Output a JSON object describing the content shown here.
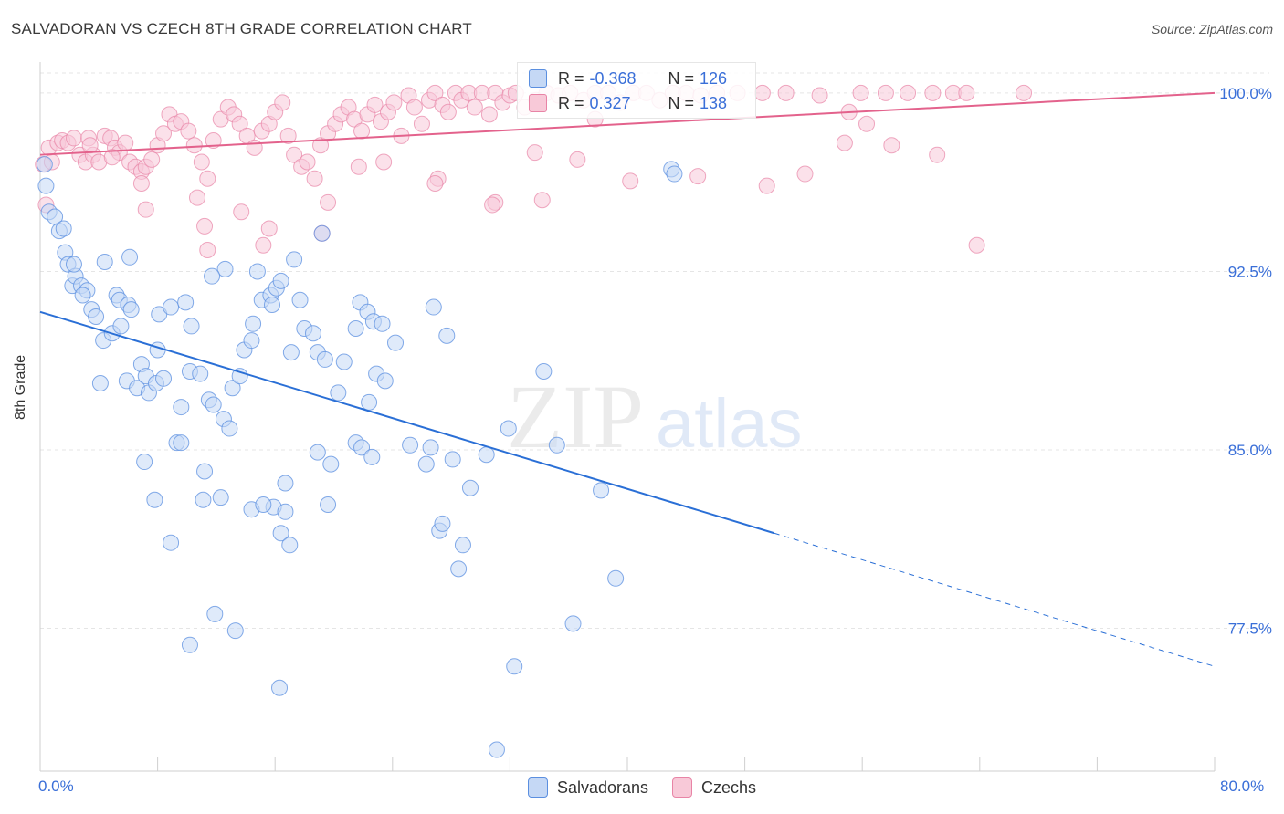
{
  "header": {
    "title": "SALVADORAN VS CZECH 8TH GRADE CORRELATION CHART",
    "source": "Source: ZipAtlas.com"
  },
  "watermark": {
    "part1": "ZIP",
    "part2": "atlas"
  },
  "legend": {
    "row1": {
      "r_label": "R =",
      "r_value": "-0.368",
      "n_label": "N =",
      "n_value": "126"
    },
    "row2": {
      "r_label": "R =",
      "r_value": "0.327",
      "n_label": "N =",
      "n_value": "138"
    }
  },
  "bottom_legend": {
    "series1": "Salvadorans",
    "series2": "Czechs"
  },
  "colors": {
    "blue_fill": "#c5d8f5",
    "blue_stroke": "#5b8fe0",
    "blue_line": "#2a6fd6",
    "pink_fill": "#f8c9d8",
    "pink_stroke": "#e884a6",
    "pink_line": "#e3628c",
    "grid": "#e5e5e5",
    "tick_text": "#3a6fd8"
  },
  "chart_data": {
    "type": "scatter",
    "title": "SALVADORAN VS CZECH 8TH GRADE CORRELATION CHART",
    "xlabel": "",
    "ylabel": "8th Grade",
    "xlim": [
      0,
      80
    ],
    "ylim": [
      71.5,
      101.3
    ],
    "x_tick_labels": [
      "0.0%",
      "80.0%"
    ],
    "y_ticks": [
      77.5,
      85.0,
      92.5,
      100.0
    ],
    "y_tick_labels": [
      "77.5%",
      "85.0%",
      "92.5%",
      "100.0%"
    ],
    "grid": true,
    "legend_position": "top-center",
    "series": [
      {
        "name": "Salvadorans",
        "r": -0.368,
        "n": 126,
        "trend": {
          "x0": 0,
          "y0": 90.8,
          "x1": 50,
          "y1": 81.5,
          "dash_to_x": 80,
          "dash_to_y": 75.9
        },
        "points": [
          [
            0.3,
            97.0
          ],
          [
            0.4,
            96.1
          ],
          [
            0.6,
            95.0
          ],
          [
            1.0,
            94.8
          ],
          [
            1.3,
            94.2
          ],
          [
            1.6,
            94.3
          ],
          [
            1.7,
            93.3
          ],
          [
            1.9,
            92.8
          ],
          [
            2.2,
            91.9
          ],
          [
            2.4,
            92.3
          ],
          [
            2.8,
            91.9
          ],
          [
            2.3,
            92.8
          ],
          [
            3.2,
            91.7
          ],
          [
            2.9,
            91.5
          ],
          [
            3.5,
            90.9
          ],
          [
            3.8,
            90.6
          ],
          [
            4.3,
            89.6
          ],
          [
            4.9,
            89.9
          ],
          [
            5.2,
            91.5
          ],
          [
            5.4,
            91.3
          ],
          [
            6.0,
            91.1
          ],
          [
            6.2,
            90.9
          ],
          [
            5.5,
            90.2
          ],
          [
            4.4,
            92.9
          ],
          [
            6.1,
            93.1
          ],
          [
            4.1,
            87.8
          ],
          [
            5.9,
            87.9
          ],
          [
            6.6,
            87.6
          ],
          [
            6.9,
            88.6
          ],
          [
            7.4,
            87.4
          ],
          [
            7.2,
            88.1
          ],
          [
            7.9,
            87.8
          ],
          [
            8.4,
            88.0
          ],
          [
            8.0,
            89.2
          ],
          [
            8.1,
            90.7
          ],
          [
            8.9,
            91.0
          ],
          [
            9.9,
            91.2
          ],
          [
            10.3,
            90.2
          ],
          [
            10.2,
            88.3
          ],
          [
            10.9,
            88.2
          ],
          [
            11.5,
            87.1
          ],
          [
            11.8,
            86.9
          ],
          [
            12.5,
            86.3
          ],
          [
            12.9,
            85.9
          ],
          [
            13.1,
            87.6
          ],
          [
            13.6,
            88.1
          ],
          [
            13.9,
            89.2
          ],
          [
            14.4,
            89.6
          ],
          [
            14.5,
            90.3
          ],
          [
            15.1,
            91.3
          ],
          [
            15.7,
            91.5
          ],
          [
            16.1,
            91.8
          ],
          [
            16.4,
            92.1
          ],
          [
            17.1,
            89.1
          ],
          [
            17.7,
            91.3
          ],
          [
            18.0,
            90.1
          ],
          [
            18.6,
            89.9
          ],
          [
            18.9,
            89.1
          ],
          [
            19.4,
            88.8
          ],
          [
            20.3,
            87.4
          ],
          [
            20.7,
            88.7
          ],
          [
            21.5,
            90.1
          ],
          [
            21.8,
            91.2
          ],
          [
            22.3,
            90.8
          ],
          [
            22.7,
            90.4
          ],
          [
            23.3,
            90.3
          ],
          [
            24.2,
            89.5
          ],
          [
            22.9,
            88.2
          ],
          [
            23.5,
            87.9
          ],
          [
            22.4,
            87.0
          ],
          [
            21.5,
            85.3
          ],
          [
            21.9,
            85.1
          ],
          [
            22.6,
            84.7
          ],
          [
            19.8,
            84.4
          ],
          [
            18.9,
            84.9
          ],
          [
            16.7,
            83.6
          ],
          [
            15.9,
            82.6
          ],
          [
            16.4,
            81.5
          ],
          [
            17.0,
            81.0
          ],
          [
            16.7,
            82.4
          ],
          [
            14.4,
            82.5
          ],
          [
            15.2,
            82.7
          ],
          [
            12.3,
            83.0
          ],
          [
            11.2,
            84.1
          ],
          [
            9.3,
            85.3
          ],
          [
            9.6,
            85.3
          ],
          [
            7.1,
            84.5
          ],
          [
            7.8,
            82.9
          ],
          [
            8.9,
            81.1
          ],
          [
            11.1,
            82.9
          ],
          [
            11.9,
            78.1
          ],
          [
            13.3,
            77.4
          ],
          [
            10.2,
            76.8
          ],
          [
            16.3,
            75.0
          ],
          [
            19.6,
            82.7
          ],
          [
            25.2,
            85.2
          ],
          [
            26.3,
            84.4
          ],
          [
            26.6,
            85.1
          ],
          [
            27.2,
            81.6
          ],
          [
            27.4,
            81.9
          ],
          [
            28.1,
            84.6
          ],
          [
            28.5,
            80.0
          ],
          [
            28.8,
            81.0
          ],
          [
            29.3,
            83.4
          ],
          [
            30.4,
            84.8
          ],
          [
            31.9,
            85.9
          ],
          [
            32.3,
            75.9
          ],
          [
            34.3,
            88.3
          ],
          [
            35.2,
            85.2
          ],
          [
            36.3,
            77.7
          ],
          [
            38.2,
            83.3
          ],
          [
            39.2,
            79.6
          ],
          [
            43.0,
            96.8
          ],
          [
            43.2,
            96.6
          ],
          [
            27.7,
            89.8
          ],
          [
            19.2,
            94.1
          ],
          [
            17.3,
            93.0
          ],
          [
            14.8,
            92.5
          ],
          [
            12.6,
            92.6
          ],
          [
            15.8,
            91.1
          ],
          [
            11.7,
            92.3
          ],
          [
            9.6,
            86.8
          ],
          [
            31.1,
            72.4
          ],
          [
            26.8,
            91.0
          ]
        ]
      },
      {
        "name": "Czechs",
        "r": 0.327,
        "n": 138,
        "trend": {
          "x0": 0,
          "y0": 97.4,
          "x1": 80,
          "y1": 100.0
        },
        "points": [
          [
            0.2,
            97.0
          ],
          [
            0.4,
            95.3
          ],
          [
            0.6,
            97.7
          ],
          [
            0.8,
            97.1
          ],
          [
            1.2,
            97.9
          ],
          [
            1.5,
            98.0
          ],
          [
            1.9,
            97.9
          ],
          [
            2.3,
            98.1
          ],
          [
            2.7,
            97.4
          ],
          [
            3.1,
            97.1
          ],
          [
            3.3,
            98.1
          ],
          [
            3.6,
            97.4
          ],
          [
            4.0,
            97.1
          ],
          [
            4.4,
            98.2
          ],
          [
            4.8,
            98.1
          ],
          [
            5.1,
            97.7
          ],
          [
            5.4,
            97.5
          ],
          [
            5.8,
            97.9
          ],
          [
            6.1,
            97.1
          ],
          [
            6.5,
            96.9
          ],
          [
            6.9,
            96.7
          ],
          [
            7.2,
            96.9
          ],
          [
            7.6,
            97.2
          ],
          [
            8.0,
            97.8
          ],
          [
            8.4,
            98.3
          ],
          [
            8.8,
            99.1
          ],
          [
            9.2,
            98.7
          ],
          [
            9.6,
            98.8
          ],
          [
            10.1,
            98.4
          ],
          [
            10.5,
            97.8
          ],
          [
            11.0,
            97.1
          ],
          [
            11.4,
            96.4
          ],
          [
            11.8,
            98.0
          ],
          [
            12.3,
            98.9
          ],
          [
            12.8,
            99.4
          ],
          [
            13.2,
            99.1
          ],
          [
            13.6,
            98.7
          ],
          [
            14.1,
            98.2
          ],
          [
            14.6,
            97.7
          ],
          [
            15.1,
            98.4
          ],
          [
            15.6,
            98.7
          ],
          [
            16.0,
            99.2
          ],
          [
            16.5,
            99.6
          ],
          [
            16.9,
            98.2
          ],
          [
            17.3,
            97.4
          ],
          [
            17.8,
            96.9
          ],
          [
            18.2,
            97.1
          ],
          [
            18.7,
            96.4
          ],
          [
            19.1,
            97.8
          ],
          [
            19.6,
            98.3
          ],
          [
            20.1,
            98.7
          ],
          [
            20.5,
            99.1
          ],
          [
            21.0,
            99.4
          ],
          [
            21.4,
            98.9
          ],
          [
            21.9,
            98.4
          ],
          [
            22.3,
            99.1
          ],
          [
            22.8,
            99.5
          ],
          [
            23.2,
            98.8
          ],
          [
            23.7,
            99.2
          ],
          [
            24.1,
            99.6
          ],
          [
            24.6,
            98.2
          ],
          [
            25.1,
            99.9
          ],
          [
            25.5,
            99.4
          ],
          [
            26.0,
            98.7
          ],
          [
            26.5,
            99.7
          ],
          [
            26.9,
            100.0
          ],
          [
            27.4,
            99.5
          ],
          [
            27.8,
            99.2
          ],
          [
            28.3,
            100.0
          ],
          [
            28.7,
            99.7
          ],
          [
            29.2,
            100.0
          ],
          [
            29.6,
            99.4
          ],
          [
            30.1,
            100.0
          ],
          [
            30.6,
            99.1
          ],
          [
            31.0,
            100.0
          ],
          [
            31.5,
            99.6
          ],
          [
            32.0,
            99.9
          ],
          [
            32.4,
            100.0
          ],
          [
            33.0,
            99.4
          ],
          [
            33.8,
            99.7
          ],
          [
            34.5,
            100.0
          ],
          [
            35.3,
            99.9
          ],
          [
            36.1,
            100.0
          ],
          [
            37.0,
            99.7
          ],
          [
            37.8,
            100.0
          ],
          [
            38.7,
            100.0
          ],
          [
            39.5,
            99.6
          ],
          [
            40.4,
            100.0
          ],
          [
            41.3,
            100.0
          ],
          [
            42.2,
            99.7
          ],
          [
            43.1,
            100.0
          ],
          [
            44.0,
            100.0
          ],
          [
            45.0,
            99.9
          ],
          [
            46.1,
            100.0
          ],
          [
            47.5,
            100.0
          ],
          [
            49.2,
            100.0
          ],
          [
            50.8,
            100.0
          ],
          [
            53.1,
            99.9
          ],
          [
            55.9,
            100.0
          ],
          [
            57.6,
            100.0
          ],
          [
            59.1,
            100.0
          ],
          [
            60.8,
            100.0
          ],
          [
            62.2,
            100.0
          ],
          [
            63.1,
            100.0
          ],
          [
            67.0,
            100.0
          ],
          [
            55.1,
            99.2
          ],
          [
            37.8,
            98.9
          ],
          [
            33.7,
            97.5
          ],
          [
            36.6,
            97.2
          ],
          [
            34.2,
            95.5
          ],
          [
            31.0,
            95.4
          ],
          [
            27.1,
            96.4
          ],
          [
            23.4,
            97.1
          ],
          [
            21.7,
            96.9
          ],
          [
            19.6,
            95.4
          ],
          [
            19.2,
            94.1
          ],
          [
            15.6,
            94.3
          ],
          [
            15.2,
            93.6
          ],
          [
            11.2,
            94.4
          ],
          [
            10.7,
            95.6
          ],
          [
            11.4,
            93.4
          ],
          [
            13.7,
            95.0
          ],
          [
            7.2,
            95.1
          ],
          [
            4.9,
            97.3
          ],
          [
            6.9,
            96.2
          ],
          [
            3.4,
            97.8
          ],
          [
            26.9,
            96.2
          ],
          [
            30.8,
            95.3
          ],
          [
            40.2,
            96.3
          ],
          [
            44.8,
            96.5
          ],
          [
            49.5,
            96.1
          ],
          [
            52.1,
            96.6
          ],
          [
            54.8,
            97.9
          ],
          [
            56.3,
            98.7
          ],
          [
            58.0,
            97.8
          ],
          [
            61.1,
            97.4
          ],
          [
            63.8,
            93.6
          ]
        ]
      }
    ]
  }
}
